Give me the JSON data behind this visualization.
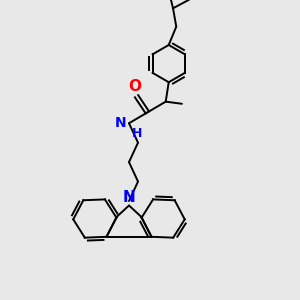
{
  "background_color": "#e8e8e8",
  "bond_color": "#000000",
  "N_color": "#0000ff",
  "O_color": "#ff0000",
  "figsize": [
    3.0,
    3.0
  ],
  "dpi": 100,
  "xlim": [
    0,
    10
  ],
  "ylim": [
    0,
    10
  ],
  "font_size": 9
}
